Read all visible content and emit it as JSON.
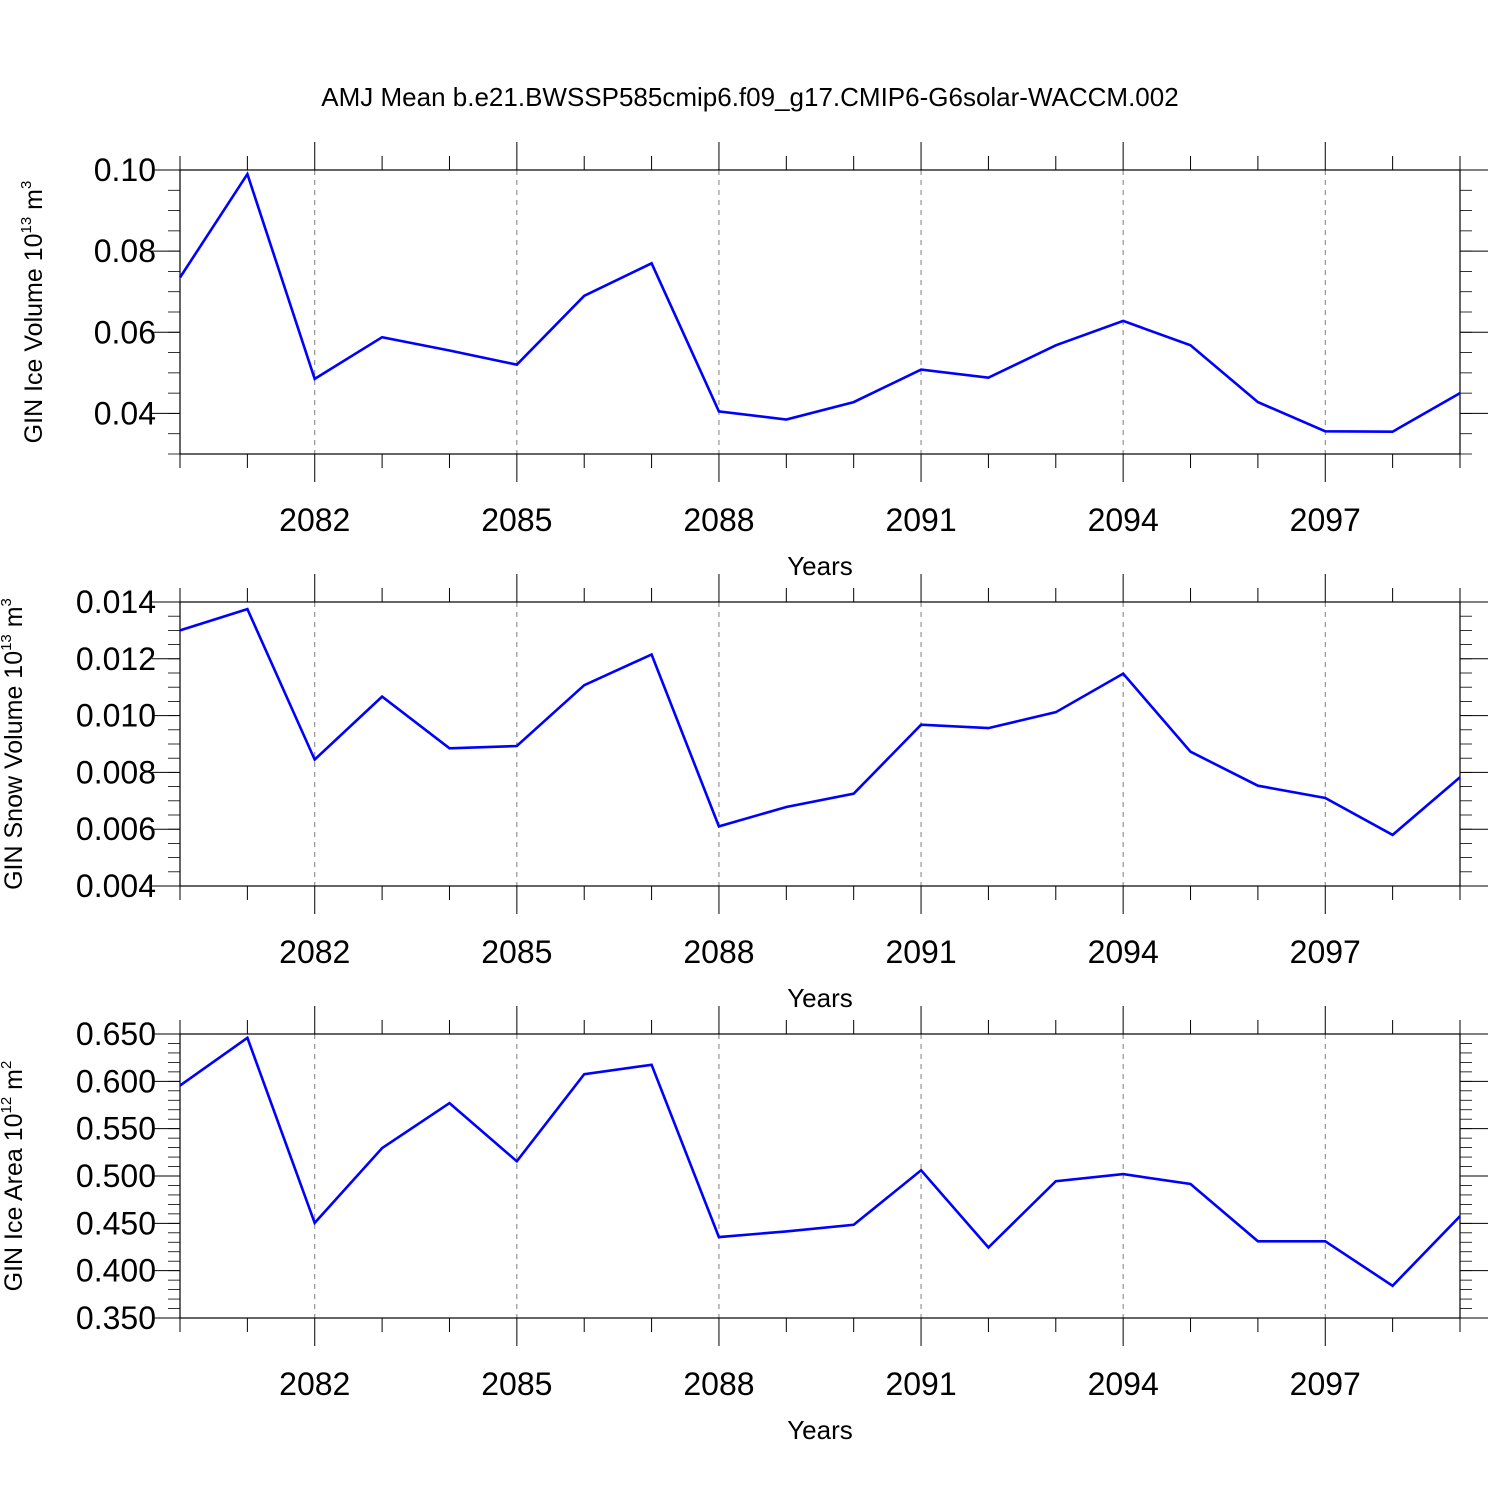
{
  "title": "AMJ Mean b.e21.BWSSP585cmip6.f09_g17.CMIP6-G6solar-WACCM.002",
  "colors": {
    "line": "#0000ff",
    "axis": "#000000",
    "grid": "#7f7f7f"
  },
  "chart_data": [
    {
      "type": "line",
      "ylabel": {
        "text": "GIN Ice Volume 10",
        "sup": "13",
        "unit": " m",
        "unit_sup": "3"
      },
      "xlabel": "Years",
      "xlim": [
        2080,
        2099
      ],
      "ylim": [
        0.03,
        0.1
      ],
      "y_major_ticks": [
        0.04,
        0.06,
        0.08,
        0.1
      ],
      "y_tick_labels": [
        "0.04",
        "0.06",
        "0.08",
        "0.10"
      ],
      "y_minor_step": 0.005,
      "x_major_ticks": [
        2082,
        2085,
        2088,
        2091,
        2094,
        2097
      ],
      "x_tick_labels": [
        "2082",
        "2085",
        "2088",
        "2091",
        "2094",
        "2097"
      ],
      "x": [
        2080,
        2081,
        2082,
        2083,
        2084,
        2085,
        2086,
        2087,
        2088,
        2089,
        2090,
        2091,
        2092,
        2093,
        2094,
        2095,
        2096,
        2097,
        2098,
        2099
      ],
      "values": [
        0.0735,
        0.099,
        0.0485,
        0.0588,
        0.0555,
        0.052,
        0.069,
        0.077,
        0.0405,
        0.0385,
        0.0428,
        0.0508,
        0.0488,
        0.0568,
        0.0628,
        0.0568,
        0.0428,
        0.0356,
        0.0355,
        0.045
      ]
    },
    {
      "type": "line",
      "ylabel": {
        "text": "GIN Snow Volume 10",
        "sup": "13",
        "unit": " m",
        "unit_sup": "3"
      },
      "xlabel": "Years",
      "xlim": [
        2080,
        2099
      ],
      "ylim": [
        0.004,
        0.014
      ],
      "y_major_ticks": [
        0.004,
        0.006,
        0.008,
        0.01,
        0.012,
        0.014
      ],
      "y_tick_labels": [
        "0.004",
        "0.006",
        "0.008",
        "0.010",
        "0.012",
        "0.014"
      ],
      "y_minor_step": 0.0005,
      "x_major_ticks": [
        2082,
        2085,
        2088,
        2091,
        2094,
        2097
      ],
      "x_tick_labels": [
        "2082",
        "2085",
        "2088",
        "2091",
        "2094",
        "2097"
      ],
      "x": [
        2080,
        2081,
        2082,
        2083,
        2084,
        2085,
        2086,
        2087,
        2088,
        2089,
        2090,
        2091,
        2092,
        2093,
        2094,
        2095,
        2096,
        2097,
        2098,
        2099
      ],
      "values": [
        0.013,
        0.01375,
        0.00845,
        0.01067,
        0.00885,
        0.00893,
        0.01107,
        0.01215,
        0.0061,
        0.00678,
        0.00725,
        0.00968,
        0.00956,
        0.01012,
        0.01148,
        0.00873,
        0.00753,
        0.0071,
        0.0058,
        0.00783
      ]
    },
    {
      "type": "line",
      "ylabel": {
        "text": "GIN Ice Area 10",
        "sup": "12",
        "unit": " m",
        "unit_sup": "2"
      },
      "xlabel": "Years",
      "xlim": [
        2080,
        2099
      ],
      "ylim": [
        0.35,
        0.65
      ],
      "y_major_ticks": [
        0.35,
        0.4,
        0.45,
        0.5,
        0.55,
        0.6,
        0.65
      ],
      "y_tick_labels": [
        "0.350",
        "0.400",
        "0.450",
        "0.500",
        "0.550",
        "0.600",
        "0.650"
      ],
      "y_minor_step": 0.01,
      "x_major_ticks": [
        2082,
        2085,
        2088,
        2091,
        2094,
        2097
      ],
      "x_tick_labels": [
        "2082",
        "2085",
        "2088",
        "2091",
        "2094",
        "2097"
      ],
      "x": [
        2080,
        2081,
        2082,
        2083,
        2084,
        2085,
        2086,
        2087,
        2088,
        2089,
        2090,
        2091,
        2092,
        2093,
        2094,
        2095,
        2096,
        2097,
        2098,
        2099
      ],
      "values": [
        0.5955,
        0.646,
        0.4505,
        0.5295,
        0.577,
        0.5155,
        0.6075,
        0.6175,
        0.4355,
        0.4415,
        0.4485,
        0.506,
        0.4245,
        0.4945,
        0.502,
        0.4915,
        0.431,
        0.431,
        0.384,
        0.4575
      ]
    }
  ]
}
